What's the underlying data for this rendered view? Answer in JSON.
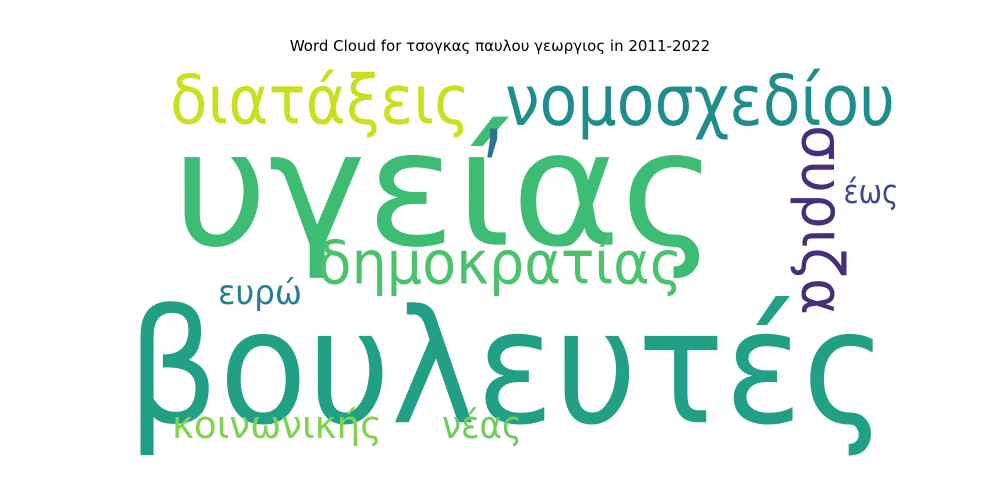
{
  "chart_data": {
    "type": "wordcloud",
    "title": "Word Cloud for τσογκας παυλου γεωργιος in 2011-2022",
    "colormap": "viridis",
    "words": [
      {
        "text": "υγείας",
        "weight": 1.0,
        "color": "#3dbc74"
      },
      {
        "text": "βουλευτές",
        "weight": 0.98,
        "color": "#21a086"
      },
      {
        "text": "νομοσχεδίου",
        "weight": 0.46,
        "color": "#1f8d8c"
      },
      {
        "text": "διατάξεις",
        "weight": 0.45,
        "color": "#c8e020"
      },
      {
        "text": "δημοκρατίας",
        "weight": 0.4,
        "color": "#4cc26c"
      },
      {
        "text": "συριζα",
        "weight": 0.36,
        "color": "#472e7c"
      },
      {
        "text": "κοινωνικής",
        "weight": 0.3,
        "color": "#7fd34e"
      },
      {
        "text": "νέας",
        "weight": 0.3,
        "color": "#6ccd5a"
      },
      {
        "text": "ευρώ",
        "weight": 0.27,
        "color": "#277f8e"
      },
      {
        "text": "έως",
        "weight": 0.26,
        "color": "#3f4889"
      },
      {
        "text": ",",
        "weight": 0.3,
        "color": "#2c728e"
      }
    ]
  }
}
